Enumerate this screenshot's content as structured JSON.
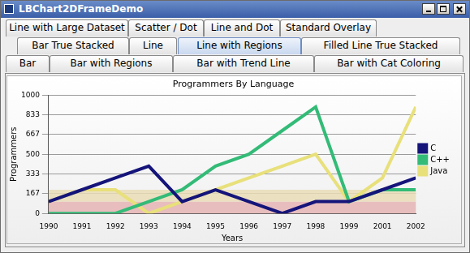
{
  "window": {
    "title": "LBChart2DFrameDemo"
  },
  "tabs": {
    "rows": [
      [
        "Line with Large Dataset",
        "Scatter / Dot",
        "Line and Dot",
        "Standard Overlay"
      ],
      [
        "Bar True Stacked",
        "Line",
        "Line with Regions",
        "Filled Line True Stacked"
      ],
      [
        "Bar",
        "Bar with Regions",
        "Bar with Trend Line",
        "Bar with Cat Coloring"
      ]
    ],
    "selected": "Line with Regions"
  },
  "chart_data": {
    "type": "line",
    "title": "Programmers By Language",
    "x_label": "Years",
    "y_label": "Programmers",
    "categories": [
      "1990",
      "1991",
      "1992",
      "1993",
      "1994",
      "1995",
      "1996",
      "1997",
      "1998",
      "1999",
      "2001",
      "2002"
    ],
    "series": [
      {
        "name": "C",
        "color": "#14147a",
        "values": [
          100,
          200,
          300,
          400,
          100,
          200,
          100,
          0,
          100,
          100,
          200,
          300
        ]
      },
      {
        "name": "C++",
        "color": "#33bb77",
        "values": [
          0,
          0,
          0,
          100,
          200,
          400,
          500,
          700,
          900,
          100,
          200,
          200
        ]
      },
      {
        "name": "Java",
        "color": "#e8e07a",
        "values": [
          100,
          200,
          200,
          0,
          100,
          200,
          300,
          400,
          500,
          100,
          300,
          900
        ]
      }
    ],
    "regions": [
      {
        "from": 0,
        "to": 100,
        "color": "#e6b4b4"
      },
      {
        "from": 100,
        "to": 200,
        "color": "#e9dcb6"
      }
    ],
    "ylim": [
      0,
      1000
    ],
    "yticks": [
      0,
      {
        "value": 166.667,
        "label": "167"
      },
      {
        "value": 333.333,
        "label": "333"
      },
      500,
      {
        "value": 666.667,
        "label": "667"
      },
      {
        "value": 833.333,
        "label": "833"
      },
      1000
    ],
    "grid": true,
    "legend": "right"
  }
}
